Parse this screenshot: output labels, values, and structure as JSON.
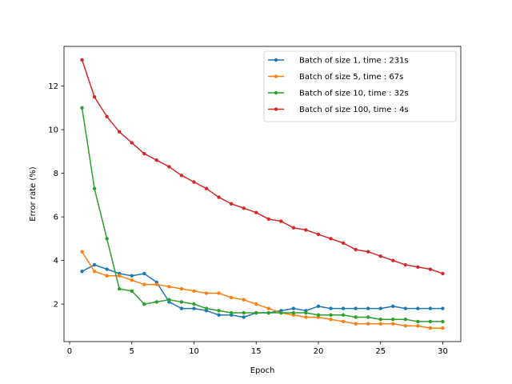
{
  "chart_data": {
    "type": "line",
    "title": "",
    "xlabel": "Epoch",
    "ylabel": "Error rate (%)",
    "xlim": [
      -0.45,
      31.45
    ],
    "ylim": [
      0.28,
      13.82
    ],
    "xticks": [
      0,
      5,
      10,
      15,
      20,
      25,
      30
    ],
    "yticks": [
      2,
      4,
      6,
      8,
      10,
      12
    ],
    "grid": false,
    "legend_position": "upper right",
    "x": [
      1,
      2,
      3,
      4,
      5,
      6,
      7,
      8,
      9,
      10,
      11,
      12,
      13,
      14,
      15,
      16,
      17,
      18,
      19,
      20,
      21,
      22,
      23,
      24,
      25,
      26,
      27,
      28,
      29,
      30
    ],
    "series": [
      {
        "name": "Batch of size 1, time : 231s",
        "color": "#1f77b4",
        "values": [
          3.5,
          3.8,
          3.6,
          3.4,
          3.3,
          3.4,
          3.0,
          2.1,
          1.8,
          1.8,
          1.7,
          1.5,
          1.5,
          1.4,
          1.6,
          1.6,
          1.7,
          1.8,
          1.7,
          1.9,
          1.8,
          1.8,
          1.8,
          1.8,
          1.8,
          1.9,
          1.8,
          1.8,
          1.8,
          1.8
        ]
      },
      {
        "name": "Batch of size 5, time : 67s",
        "color": "#ff7f0e",
        "values": [
          4.4,
          3.5,
          3.3,
          3.3,
          3.1,
          2.9,
          2.9,
          2.8,
          2.7,
          2.6,
          2.5,
          2.5,
          2.3,
          2.2,
          2.0,
          1.8,
          1.6,
          1.5,
          1.4,
          1.4,
          1.3,
          1.2,
          1.1,
          1.1,
          1.1,
          1.1,
          1.0,
          1.0,
          0.9,
          0.9
        ]
      },
      {
        "name": "Batch of size 10, time : 32s",
        "color": "#2ca02c",
        "values": [
          11.0,
          7.3,
          5.0,
          2.7,
          2.6,
          2.0,
          2.1,
          2.2,
          2.1,
          2.0,
          1.8,
          1.7,
          1.6,
          1.6,
          1.6,
          1.6,
          1.6,
          1.6,
          1.6,
          1.5,
          1.5,
          1.5,
          1.4,
          1.4,
          1.3,
          1.3,
          1.3,
          1.2,
          1.2,
          1.2
        ]
      },
      {
        "name": "Batch of size 100, time : 4s",
        "color": "#d62728",
        "values": [
          13.2,
          11.5,
          10.6,
          9.9,
          9.4,
          8.9,
          8.6,
          8.3,
          7.9,
          7.6,
          7.3,
          6.9,
          6.6,
          6.4,
          6.2,
          5.9,
          5.8,
          5.5,
          5.4,
          5.2,
          5.0,
          4.8,
          4.5,
          4.4,
          4.2,
          4.0,
          3.8,
          3.7,
          3.6,
          3.4
        ]
      }
    ]
  }
}
